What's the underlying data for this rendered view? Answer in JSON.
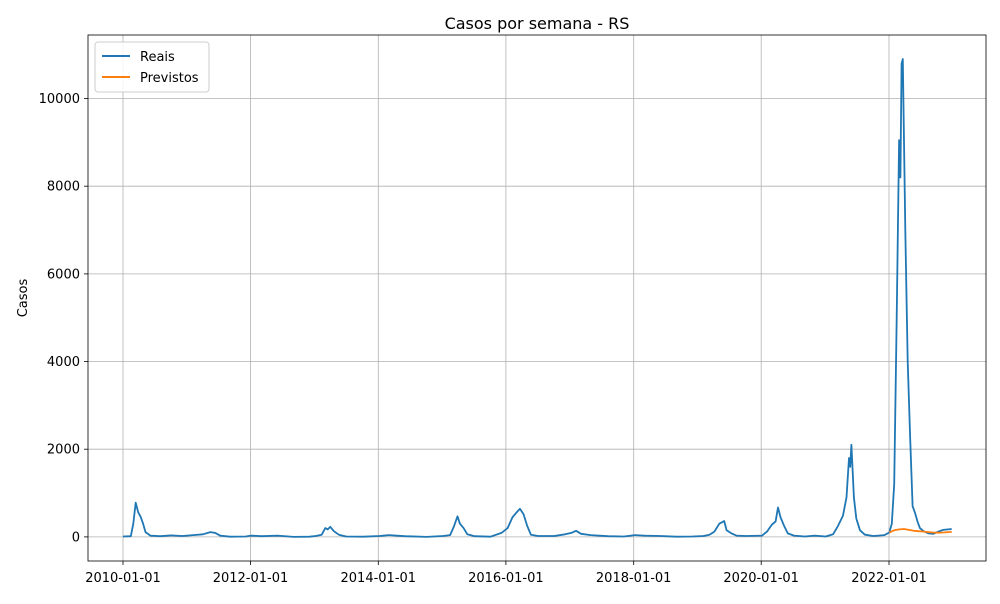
{
  "chart_data": {
    "type": "line",
    "title": "Casos por semana - RS",
    "xlabel": "",
    "ylabel": "Casos",
    "x_type": "date",
    "xlim": [
      "2009-06-15",
      "2023-07-10"
    ],
    "ylim": [
      -550,
      11450
    ],
    "x_ticks": [
      "2010-01-01",
      "2012-01-01",
      "2014-01-01",
      "2016-01-01",
      "2018-01-01",
      "2020-01-01",
      "2022-01-01"
    ],
    "y_ticks": [
      0,
      2000,
      4000,
      6000,
      8000,
      10000
    ],
    "grid": true,
    "legend_position": "top-left",
    "series": [
      {
        "name": "Reais",
        "color": "#1f77b4",
        "points": [
          [
            "2010-01-01",
            10
          ],
          [
            "2010-02-15",
            15
          ],
          [
            "2010-03-01",
            300
          ],
          [
            "2010-03-15",
            780
          ],
          [
            "2010-03-29",
            560
          ],
          [
            "2010-04-12",
            460
          ],
          [
            "2010-04-26",
            300
          ],
          [
            "2010-05-10",
            110
          ],
          [
            "2010-06-07",
            30
          ],
          [
            "2010-08-02",
            15
          ],
          [
            "2010-10-04",
            35
          ],
          [
            "2010-12-06",
            20
          ],
          [
            "2011-02-07",
            40
          ],
          [
            "2011-04-04",
            60
          ],
          [
            "2011-05-16",
            110
          ],
          [
            "2011-06-13",
            90
          ],
          [
            "2011-07-11",
            30
          ],
          [
            "2011-09-05",
            5
          ],
          [
            "2011-12-05",
            10
          ],
          [
            "2012-01-02",
            30
          ],
          [
            "2012-03-05",
            15
          ],
          [
            "2012-06-04",
            30
          ],
          [
            "2012-09-03",
            0
          ],
          [
            "2012-12-03",
            5
          ],
          [
            "2013-01-07",
            20
          ],
          [
            "2013-02-11",
            50
          ],
          [
            "2013-03-04",
            200
          ],
          [
            "2013-03-18",
            170
          ],
          [
            "2013-04-01",
            230
          ],
          [
            "2013-04-22",
            130
          ],
          [
            "2013-05-20",
            50
          ],
          [
            "2013-07-01",
            10
          ],
          [
            "2013-10-07",
            5
          ],
          [
            "2014-01-06",
            20
          ],
          [
            "2014-03-03",
            40
          ],
          [
            "2014-06-02",
            15
          ],
          [
            "2014-10-06",
            0
          ],
          [
            "2015-01-05",
            20
          ],
          [
            "2015-02-16",
            40
          ],
          [
            "2015-03-09",
            230
          ],
          [
            "2015-03-30",
            470
          ],
          [
            "2015-04-13",
            300
          ],
          [
            "2015-05-04",
            200
          ],
          [
            "2015-05-25",
            60
          ],
          [
            "2015-07-06",
            15
          ],
          [
            "2015-10-05",
            5
          ],
          [
            "2015-12-07",
            90
          ],
          [
            "2016-01-11",
            200
          ],
          [
            "2016-02-08",
            450
          ],
          [
            "2016-03-07",
            580
          ],
          [
            "2016-03-21",
            640
          ],
          [
            "2016-04-11",
            520
          ],
          [
            "2016-05-02",
            250
          ],
          [
            "2016-05-23",
            50
          ],
          [
            "2016-07-04",
            20
          ],
          [
            "2016-10-03",
            20
          ],
          [
            "2016-12-05",
            60
          ],
          [
            "2017-01-09",
            90
          ],
          [
            "2017-02-06",
            140
          ],
          [
            "2017-03-06",
            70
          ],
          [
            "2017-05-01",
            40
          ],
          [
            "2017-08-07",
            15
          ],
          [
            "2017-11-06",
            10
          ],
          [
            "2018-01-08",
            40
          ],
          [
            "2018-03-05",
            30
          ],
          [
            "2018-06-04",
            20
          ],
          [
            "2018-09-03",
            5
          ],
          [
            "2018-12-03",
            10
          ],
          [
            "2019-02-04",
            20
          ],
          [
            "2019-03-11",
            50
          ],
          [
            "2019-04-08",
            120
          ],
          [
            "2019-05-06",
            300
          ],
          [
            "2019-06-03",
            360
          ],
          [
            "2019-06-17",
            150
          ],
          [
            "2019-07-15",
            80
          ],
          [
            "2019-08-12",
            30
          ],
          [
            "2019-10-07",
            20
          ],
          [
            "2020-01-06",
            30
          ],
          [
            "2020-02-03",
            120
          ],
          [
            "2020-03-02",
            280
          ],
          [
            "2020-03-23",
            350
          ],
          [
            "2020-04-06",
            670
          ],
          [
            "2020-04-20",
            450
          ],
          [
            "2020-05-11",
            250
          ],
          [
            "2020-06-01",
            80
          ],
          [
            "2020-07-06",
            30
          ],
          [
            "2020-09-07",
            10
          ],
          [
            "2020-11-02",
            30
          ],
          [
            "2021-01-04",
            10
          ],
          [
            "2021-02-15",
            60
          ],
          [
            "2021-03-15",
            250
          ],
          [
            "2021-04-12",
            480
          ],
          [
            "2021-05-03",
            900
          ],
          [
            "2021-05-17",
            1800
          ],
          [
            "2021-05-24",
            1600
          ],
          [
            "2021-05-31",
            2100
          ],
          [
            "2021-06-14",
            900
          ],
          [
            "2021-06-28",
            420
          ],
          [
            "2021-07-19",
            150
          ],
          [
            "2021-08-16",
            50
          ],
          [
            "2021-10-04",
            20
          ],
          [
            "2021-12-06",
            40
          ],
          [
            "2022-01-03",
            100
          ],
          [
            "2022-01-17",
            300
          ],
          [
            "2022-01-31",
            1200
          ],
          [
            "2022-02-14",
            5000
          ],
          [
            "2022-02-28",
            9050
          ],
          [
            "2022-03-07",
            8200
          ],
          [
            "2022-03-14",
            10800
          ],
          [
            "2022-03-21",
            10900
          ],
          [
            "2022-04-04",
            7000
          ],
          [
            "2022-04-18",
            4000
          ],
          [
            "2022-05-02",
            2300
          ],
          [
            "2022-05-16",
            700
          ],
          [
            "2022-05-30",
            550
          ],
          [
            "2022-06-13",
            350
          ],
          [
            "2022-06-27",
            200
          ],
          [
            "2022-07-18",
            130
          ],
          [
            "2022-08-15",
            80
          ],
          [
            "2022-09-12",
            70
          ],
          [
            "2022-10-10",
            120
          ],
          [
            "2022-11-07",
            160
          ],
          [
            "2022-12-05",
            170
          ],
          [
            "2022-12-26",
            180
          ]
        ]
      },
      {
        "name": "Previstos",
        "color": "#ff7f0e",
        "points": [
          [
            "2022-01-03",
            100
          ],
          [
            "2022-01-31",
            150
          ],
          [
            "2022-02-28",
            170
          ],
          [
            "2022-03-28",
            180
          ],
          [
            "2022-04-25",
            160
          ],
          [
            "2022-05-23",
            140
          ],
          [
            "2022-06-20",
            130
          ],
          [
            "2022-07-18",
            120
          ],
          [
            "2022-08-15",
            110
          ],
          [
            "2022-09-12",
            100
          ],
          [
            "2022-10-10",
            95
          ],
          [
            "2022-11-07",
            100
          ],
          [
            "2022-12-05",
            110
          ],
          [
            "2022-12-26",
            115
          ]
        ]
      }
    ]
  }
}
